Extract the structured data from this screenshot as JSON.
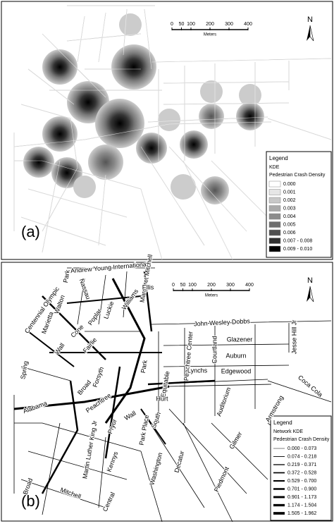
{
  "panels": [
    {
      "label": "(a)",
      "north": "N",
      "scale": {
        "ticks": [
          0,
          50,
          100,
          200,
          300,
          400
        ],
        "unit": "Meters"
      },
      "legend": {
        "title": "Legend",
        "layer": "KDE",
        "field": "Pedestrian Crash Density",
        "classes": [
          "0.000",
          "0.001",
          "0.002",
          "0.003",
          "0.004",
          "0.005",
          "0.006",
          "0.007 - 0.008",
          "0.009 - 0.010"
        ],
        "colors": [
          "#ffffff",
          "#e6e6e6",
          "#c8c8c8",
          "#aaaaaa",
          "#8c8c8c",
          "#6e6e6e",
          "#505050",
          "#303030",
          "#000000"
        ]
      }
    },
    {
      "label": "(b)",
      "north": "N",
      "scale": {
        "ticks": [
          0,
          50,
          100,
          200,
          300,
          400
        ],
        "unit": "Meters"
      },
      "legend": {
        "title": "Legend",
        "layer": "Network KDE",
        "field": "Pedestrian Crash Density",
        "classes": [
          "0.000 - 0.073",
          "0.074 - 0.218",
          "0.219 - 0.371",
          "0.372 - 0.528",
          "0.529 - 0.700",
          "0.701 - 0.900",
          "0.901 - 1.173",
          "1.174 - 1.504",
          "1.505 - 1.962"
        ]
      },
      "streets": [
        "Andrew Young International",
        "Park",
        "Margaret Mitchell",
        "Ellis",
        "Nassau",
        "Centennial Olympic",
        "Walton",
        "Luckie",
        "Williams",
        "Poplar",
        "Marietta",
        "Cone",
        "John Wesley Dobbs",
        "Glazener",
        "Jesse Hill Jr",
        "Courtland",
        "Peachtree Center",
        "Fairlie",
        "Wall",
        "Auburn",
        "Spring",
        "Forsyth",
        "Park",
        "Lynchs",
        "Equitable",
        "Broad",
        "Edgewood",
        "Coca Cola",
        "Alabama",
        "Hurt",
        "Auditorium",
        "Peachtree",
        "Armstrong",
        "Wall",
        "Pryor",
        "Park Place",
        "South",
        "Gilmer",
        "Broad",
        "Martin Luther King Jr",
        "Kennys",
        "Washington",
        "Decatur",
        "Mitchell",
        "Central",
        "Piedmont"
      ]
    }
  ]
}
